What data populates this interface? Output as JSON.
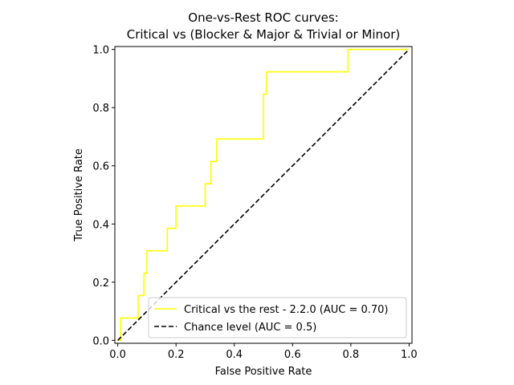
{
  "chart_data": {
    "type": "line",
    "title_line1": "One-vs-Rest ROC curves:",
    "title_line2": "Critical vs (Blocker & Major & Trivial or Minor)",
    "xlabel": "False Positive Rate",
    "ylabel": "True Positive Rate",
    "xlim": [
      -0.01,
      1.01
    ],
    "ylim": [
      -0.01,
      1.01
    ],
    "xticks": [
      0.0,
      0.2,
      0.4,
      0.6,
      0.8,
      1.0
    ],
    "xtick_labels": [
      "0.0",
      "0.2",
      "0.4",
      "0.6",
      "0.8",
      "1.0"
    ],
    "yticks": [
      0.0,
      0.2,
      0.4,
      0.6,
      0.8,
      1.0
    ],
    "ytick_labels": [
      "0.0",
      "0.2",
      "0.4",
      "0.6",
      "0.8",
      "1.0"
    ],
    "grid": false,
    "legend_position": "lower-right",
    "series": [
      {
        "name": "Critical vs the rest - 2.2.0 (AUC = 0.70)",
        "color": "#ffff00",
        "style": "solid",
        "x": [
          0.0,
          0.0,
          0.01,
          0.01,
          0.07,
          0.07,
          0.09,
          0.09,
          0.1,
          0.1,
          0.17,
          0.17,
          0.2,
          0.2,
          0.3,
          0.3,
          0.32,
          0.32,
          0.34,
          0.34,
          0.5,
          0.5,
          0.51,
          0.51,
          0.79,
          0.79,
          1.0
        ],
        "y": [
          0.0,
          0.0,
          0.0,
          0.077,
          0.077,
          0.154,
          0.154,
          0.231,
          0.231,
          0.308,
          0.308,
          0.385,
          0.385,
          0.462,
          0.462,
          0.538,
          0.538,
          0.615,
          0.615,
          0.692,
          0.692,
          0.846,
          0.846,
          0.923,
          0.923,
          1.0,
          1.0
        ]
      },
      {
        "name": "Chance level (AUC = 0.5)",
        "color": "#000000",
        "style": "dashed",
        "x": [
          0.0,
          1.0
        ],
        "y": [
          0.0,
          1.0
        ]
      }
    ]
  }
}
